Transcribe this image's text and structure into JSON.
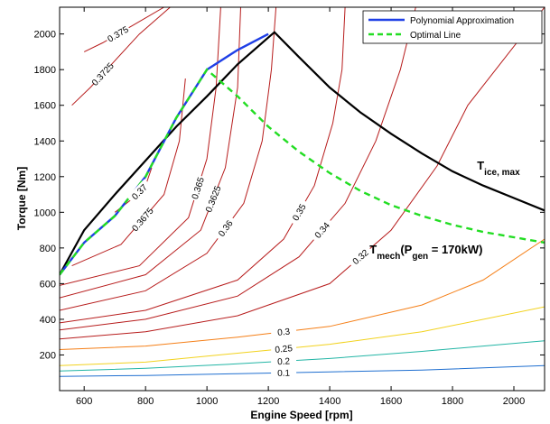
{
  "chart_data": {
    "type": "line",
    "xlabel": "Engine Speed [rpm]",
    "ylabel": "Torque [Nm]",
    "xlim": [
      520,
      2100
    ],
    "ylim": [
      0,
      2150
    ],
    "xticks": [
      600,
      800,
      1000,
      1200,
      1400,
      1600,
      1800,
      2000
    ],
    "yticks": [
      200,
      400,
      600,
      800,
      1000,
      1200,
      1400,
      1600,
      1800,
      2000
    ],
    "grid": false,
    "legend_position": "top-right",
    "series": [
      {
        "name": "Polynomial Approximation",
        "color": "#1f3fe6",
        "style": "solid",
        "x": [
          520,
          600,
          700,
          800,
          900,
          1000,
          1100,
          1200
        ],
        "y": [
          650,
          830,
          980,
          1200,
          1530,
          1800,
          1910,
          2000
        ]
      },
      {
        "name": "Optimal Line",
        "color": "#22dd22",
        "style": "dashed",
        "x": [
          520,
          600,
          700,
          800,
          900,
          1000,
          1100,
          1200,
          1300,
          1400,
          1500,
          1600,
          1700,
          1800,
          1900,
          2000,
          2100
        ],
        "y": [
          650,
          830,
          980,
          1200,
          1530,
          1800,
          1650,
          1480,
          1340,
          1220,
          1120,
          1040,
          980,
          930,
          890,
          860,
          830
        ]
      }
    ],
    "curves": [
      {
        "label": "T_ice,max",
        "color": "#000000",
        "style": "solid",
        "x": [
          520,
          600,
          700,
          800,
          900,
          1000,
          1100,
          1200,
          1220,
          1300,
          1400,
          1500,
          1600,
          1700,
          1800,
          1900,
          2000,
          2100
        ],
        "y": [
          650,
          900,
          1100,
          1290,
          1480,
          1650,
          1830,
          1980,
          2010,
          1870,
          1700,
          1560,
          1440,
          1330,
          1230,
          1150,
          1080,
          1010
        ]
      }
    ],
    "contours": [
      {
        "level": "0.1",
        "color": "#1f6fd0",
        "x": [
          520,
          800,
          1100,
          1400,
          1700,
          2100
        ],
        "y": [
          80,
          85,
          95,
          105,
          115,
          140
        ]
      },
      {
        "level": "0.2",
        "color": "#22b5a5",
        "x": [
          520,
          800,
          1100,
          1400,
          1700,
          2100
        ],
        "y": [
          110,
          125,
          150,
          180,
          220,
          280
        ]
      },
      {
        "level": "0.25",
        "color": "#f2d21e",
        "x": [
          520,
          800,
          1100,
          1400,
          1700,
          2100
        ],
        "y": [
          140,
          160,
          210,
          260,
          330,
          470
        ]
      },
      {
        "level": "0.3",
        "color": "#f57f17",
        "x": [
          520,
          800,
          1100,
          1400,
          1700,
          1900,
          2100
        ],
        "y": [
          230,
          250,
          300,
          360,
          480,
          620,
          850
        ]
      },
      {
        "level": "0.32",
        "color": "#b71c1c",
        "x": [
          520,
          800,
          1100,
          1400,
          1600,
          1750,
          1850,
          2100
        ],
        "y": [
          290,
          330,
          420,
          600,
          900,
          1260,
          1600,
          2150
        ]
      },
      {
        "level": "0.34",
        "color": "#b71c1c",
        "x": [
          520,
          800,
          1100,
          1300,
          1450,
          1550,
          1630,
          1680
        ],
        "y": [
          340,
          400,
          530,
          750,
          1050,
          1400,
          1800,
          2150
        ]
      },
      {
        "level": "0.35",
        "color": "#b71c1c",
        "x": [
          520,
          800,
          1100,
          1250,
          1350,
          1410,
          1440,
          1450
        ],
        "y": [
          380,
          450,
          620,
          850,
          1150,
          1500,
          1800,
          2150
        ]
      },
      {
        "level": "0.36",
        "color": "#b71c1c",
        "x": [
          520,
          800,
          1000,
          1120,
          1180,
          1210,
          1225
        ],
        "y": [
          450,
          560,
          770,
          1050,
          1400,
          1800,
          2150
        ]
      },
      {
        "level": "0.3625",
        "color": "#b71c1c",
        "x": [
          520,
          800,
          980,
          1060,
          1100,
          1110
        ],
        "y": [
          520,
          650,
          900,
          1250,
          1700,
          2150
        ]
      },
      {
        "level": "0.365",
        "color": "#b71c1c",
        "x": [
          520,
          780,
          940,
          1000,
          1030,
          1045
        ],
        "y": [
          590,
          700,
          970,
          1300,
          1700,
          2150
        ]
      },
      {
        "level": "0.3675",
        "color": "#b71c1c",
        "x": [
          560,
          720,
          860,
          910,
          930
        ],
        "y": [
          700,
          820,
          1100,
          1400,
          1750
        ]
      },
      {
        "level": "0.37",
        "color": "#b71c1c",
        "x": [
          700,
          760,
          800,
          820
        ],
        "y": [
          1000,
          1080,
          1150,
          1250
        ]
      },
      {
        "level": "0.3725",
        "color": "#b71c1c",
        "x": [
          560,
          620,
          700,
          780,
          880
        ],
        "y": [
          1600,
          1700,
          1850,
          2000,
          2150
        ]
      },
      {
        "level": "0.375",
        "color": "#b71c1c",
        "x": [
          600,
          660,
          760,
          860
        ],
        "y": [
          1900,
          1950,
          2050,
          2150
        ]
      }
    ],
    "annotations": [
      {
        "text": "T",
        "sub": "ice, max",
        "x": 1880,
        "y": 1240
      },
      {
        "text": "T",
        "sub": "mech",
        "mid": "(P",
        "sub2": "gen",
        "tail": "= 170kW)",
        "x": 1530,
        "y": 770
      }
    ]
  }
}
